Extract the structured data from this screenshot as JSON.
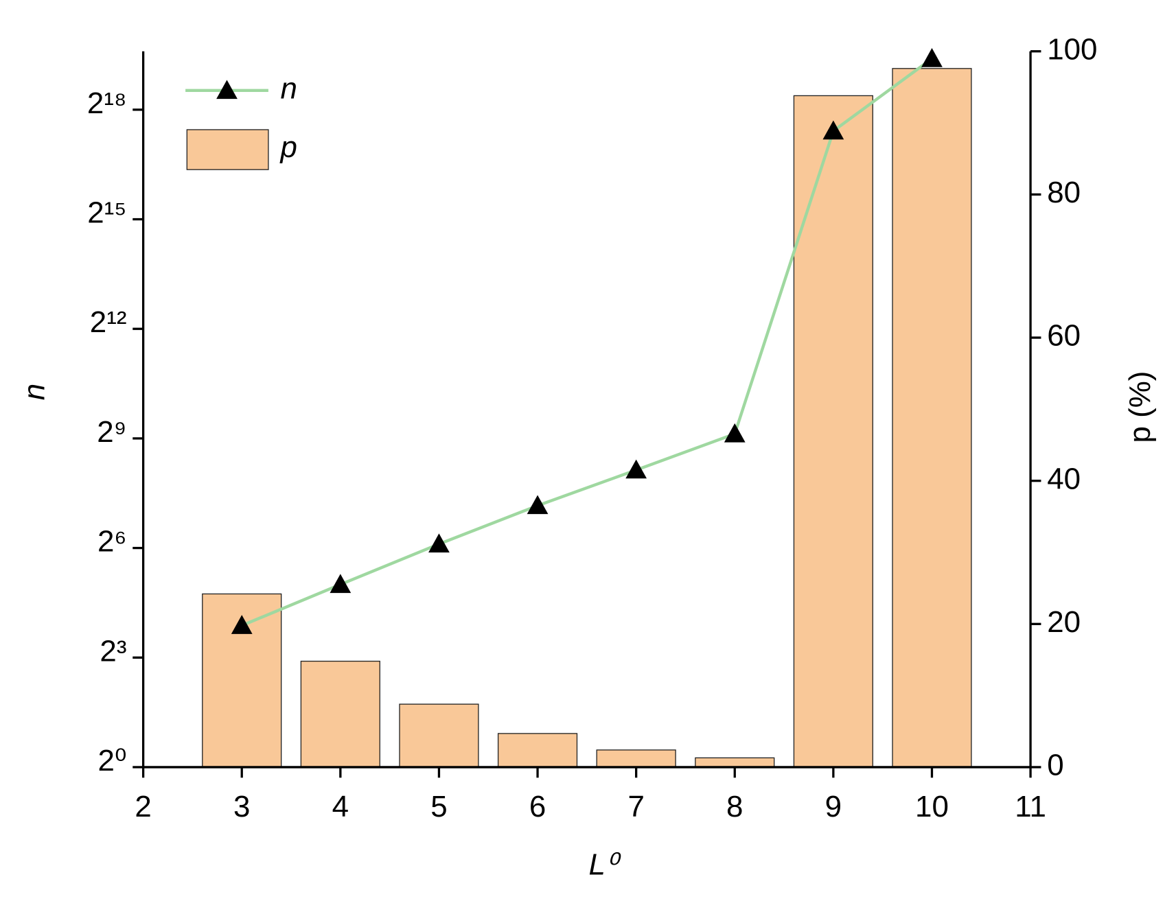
{
  "chart_data": {
    "type": "bar",
    "x": [
      3,
      4,
      5,
      6,
      7,
      8,
      9,
      10
    ],
    "xlabel": "L⁰",
    "ylabel": "n",
    "y2label": "p (%)",
    "xlim": [
      2,
      11
    ],
    "xticks": [
      2,
      3,
      4,
      5,
      6,
      7,
      8,
      9,
      10,
      11
    ],
    "ylim": [
      1,
      794000
    ],
    "yscale": "log2",
    "yticks": [
      {
        "value": 1,
        "label": "2⁰"
      },
      {
        "value": 8,
        "label": "2³"
      },
      {
        "value": 64,
        "label": "2⁶"
      },
      {
        "value": 512,
        "label": "2⁹"
      },
      {
        "value": 4096,
        "label": "2¹²"
      },
      {
        "value": 32768,
        "label": "2¹⁵"
      },
      {
        "value": 262144,
        "label": "2¹⁸"
      }
    ],
    "y2lim": [
      0,
      100
    ],
    "y2ticks": [
      0,
      20,
      40,
      60,
      80,
      100
    ],
    "legend": "upper left",
    "series": [
      {
        "name": "p",
        "type": "bar",
        "axis": "y2",
        "color": "#f9c898",
        "values": [
          24.2,
          14.8,
          8.8,
          4.7,
          2.4,
          1.3,
          93.8,
          97.6
        ]
      },
      {
        "name": "n",
        "type": "line",
        "axis": "y",
        "color": "#9fd8a0",
        "values": [
          14.7,
          32,
          69,
          143,
          281,
          558,
          175000,
          691000
        ]
      }
    ]
  }
}
